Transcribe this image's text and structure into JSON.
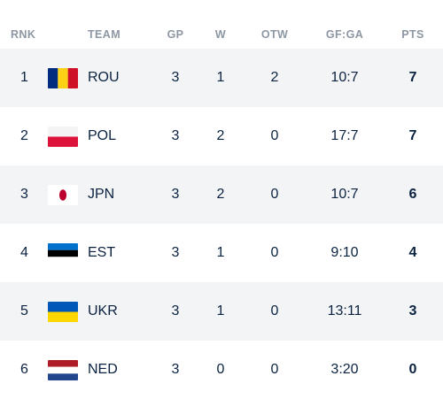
{
  "header": {
    "rank": "RNK",
    "team": "TEAM",
    "gp": "GP",
    "w": "W",
    "otw": "OTW",
    "gfga": "GF:GA",
    "pts": "PTS"
  },
  "rows": [
    {
      "rank": "1",
      "team": "ROU",
      "flag": "romania-flag-icon",
      "gp": "3",
      "w": "1",
      "otw": "2",
      "gfga": "10:7",
      "pts": "7"
    },
    {
      "rank": "2",
      "team": "POL",
      "flag": "poland-flag-icon",
      "gp": "3",
      "w": "2",
      "otw": "0",
      "gfga": "17:7",
      "pts": "7"
    },
    {
      "rank": "3",
      "team": "JPN",
      "flag": "japan-flag-icon",
      "gp": "3",
      "w": "2",
      "otw": "0",
      "gfga": "10:7",
      "pts": "6"
    },
    {
      "rank": "4",
      "team": "EST",
      "flag": "estonia-flag-icon",
      "gp": "3",
      "w": "1",
      "otw": "0",
      "gfga": "9:10",
      "pts": "4"
    },
    {
      "rank": "5",
      "team": "UKR",
      "flag": "ukraine-flag-icon",
      "gp": "3",
      "w": "1",
      "otw": "0",
      "gfga": "13:11",
      "pts": "3"
    },
    {
      "rank": "6",
      "team": "NED",
      "flag": "netherlands-flag-icon",
      "gp": "3",
      "w": "0",
      "otw": "0",
      "gfga": "3:20",
      "pts": "0"
    }
  ],
  "colors": {
    "header_text": "#8d97a3",
    "body_text": "#0a2240",
    "row_alt_bg": "#f3f4f6"
  }
}
